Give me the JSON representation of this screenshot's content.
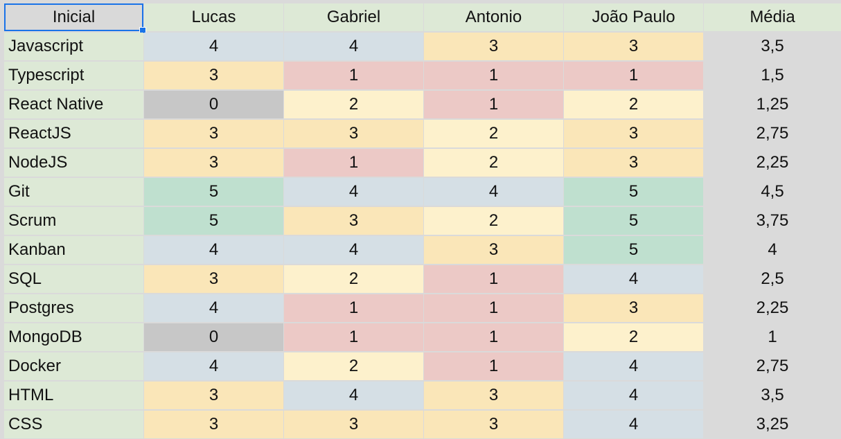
{
  "colors": {
    "header": "#dde9d6",
    "label": "#dde9d6",
    "score_0": "#c7c7c7",
    "score_1": "#ecc9c6",
    "score_2": "#fdf1cc",
    "score_3": "#fae6b8",
    "score_4": "#d5dfe5",
    "score_5": "#bfe0cf",
    "average": "#dadada",
    "selected_header": "#d9d9d9",
    "selection": "#1a73e8"
  },
  "headers": [
    "Inicial",
    "Lucas",
    "Gabriel",
    "Antonio",
    "João Paulo",
    "Média"
  ],
  "rows": [
    {
      "label": "Javascript",
      "scores": [
        4,
        4,
        3,
        3
      ],
      "average": "3,5"
    },
    {
      "label": "Typescript",
      "scores": [
        3,
        1,
        1,
        1
      ],
      "average": "1,5"
    },
    {
      "label": "React Native",
      "scores": [
        0,
        2,
        1,
        2
      ],
      "average": "1,25"
    },
    {
      "label": "ReactJS",
      "scores": [
        3,
        3,
        2,
        3
      ],
      "average": "2,75"
    },
    {
      "label": "NodeJS",
      "scores": [
        3,
        1,
        2,
        3
      ],
      "average": "2,25"
    },
    {
      "label": "Git",
      "scores": [
        5,
        4,
        4,
        5
      ],
      "average": "4,5"
    },
    {
      "label": "Scrum",
      "scores": [
        5,
        3,
        2,
        5
      ],
      "average": "3,75"
    },
    {
      "label": "Kanban",
      "scores": [
        4,
        4,
        3,
        5
      ],
      "average": "4"
    },
    {
      "label": "SQL",
      "scores": [
        3,
        2,
        1,
        4
      ],
      "average": "2,5"
    },
    {
      "label": "Postgres",
      "scores": [
        4,
        1,
        1,
        3
      ],
      "average": "2,25"
    },
    {
      "label": "MongoDB",
      "scores": [
        0,
        1,
        1,
        2
      ],
      "average": "1"
    },
    {
      "label": "Docker",
      "scores": [
        4,
        2,
        1,
        4
      ],
      "average": "2,75"
    },
    {
      "label": "HTML",
      "scores": [
        3,
        4,
        3,
        4
      ],
      "average": "3,5"
    },
    {
      "label": "CSS",
      "scores": [
        3,
        3,
        3,
        4
      ],
      "average": "3,25"
    }
  ]
}
